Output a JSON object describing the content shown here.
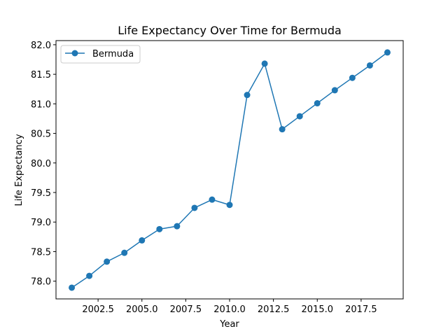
{
  "chart_data": {
    "type": "line",
    "title": "Life Expectancy Over Time for Bermuda",
    "xlabel": "Year",
    "ylabel": "Life Expectancy",
    "xlim": [
      2000.1,
      2019.9
    ],
    "ylim": [
      77.7,
      82.07
    ],
    "xticks": [
      2002.5,
      2005.0,
      2007.5,
      2010.0,
      2012.5,
      2015.0,
      2017.5
    ],
    "xtick_labels": [
      "2002.5",
      "2005.0",
      "2007.5",
      "2010.0",
      "2012.5",
      "2015.0",
      "2017.5"
    ],
    "yticks": [
      78.0,
      78.5,
      79.0,
      79.5,
      80.0,
      80.5,
      81.0,
      81.5,
      82.0
    ],
    "ytick_labels": [
      "78.0",
      "78.5",
      "79.0",
      "79.5",
      "80.0",
      "80.5",
      "81.0",
      "81.5",
      "82.0"
    ],
    "grid": false,
    "legend_position": "top-left",
    "series": [
      {
        "name": "Bermuda",
        "color": "#1f77b4",
        "marker": "circle",
        "x": [
          2001,
          2002,
          2003,
          2004,
          2005,
          2006,
          2007,
          2008,
          2009,
          2010,
          2011,
          2012,
          2013,
          2014,
          2015,
          2016,
          2017,
          2018,
          2019
        ],
        "y": [
          77.89,
          78.09,
          78.33,
          78.48,
          78.69,
          78.88,
          78.93,
          79.24,
          79.38,
          79.29,
          81.15,
          81.68,
          80.57,
          80.79,
          81.01,
          81.23,
          81.44,
          81.65,
          81.87
        ]
      }
    ]
  }
}
